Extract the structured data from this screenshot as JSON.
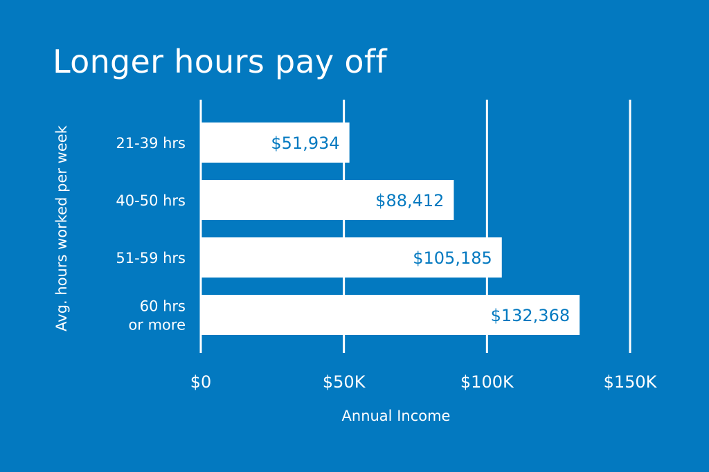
{
  "chart_data": {
    "type": "bar",
    "orientation": "horizontal",
    "title": "Longer hours pay off",
    "xlabel": "Annual Income",
    "ylabel": "Avg. hours worked per week",
    "categories": [
      [
        "21-39 hrs"
      ],
      [
        "40-50 hrs"
      ],
      [
        "51-59 hrs"
      ],
      [
        "60 hrs",
        "or more"
      ]
    ],
    "values": [
      51934,
      88412,
      105185,
      132368
    ],
    "value_labels": [
      "$51,934",
      "$88,412",
      "$105,185",
      "$132,368"
    ],
    "xlim": [
      0,
      150000
    ],
    "xticks": [
      0,
      50000,
      100000,
      150000
    ],
    "xtick_labels": [
      "$0",
      "$50K",
      "$100K",
      "$150K"
    ],
    "grid": true,
    "legend": "none",
    "colors": {
      "background": "#0379C0",
      "bar": "#FFFFFF",
      "bar_label": "#0379C0",
      "text": "#FFFFFF",
      "gridline": "#FFFFFF"
    }
  }
}
